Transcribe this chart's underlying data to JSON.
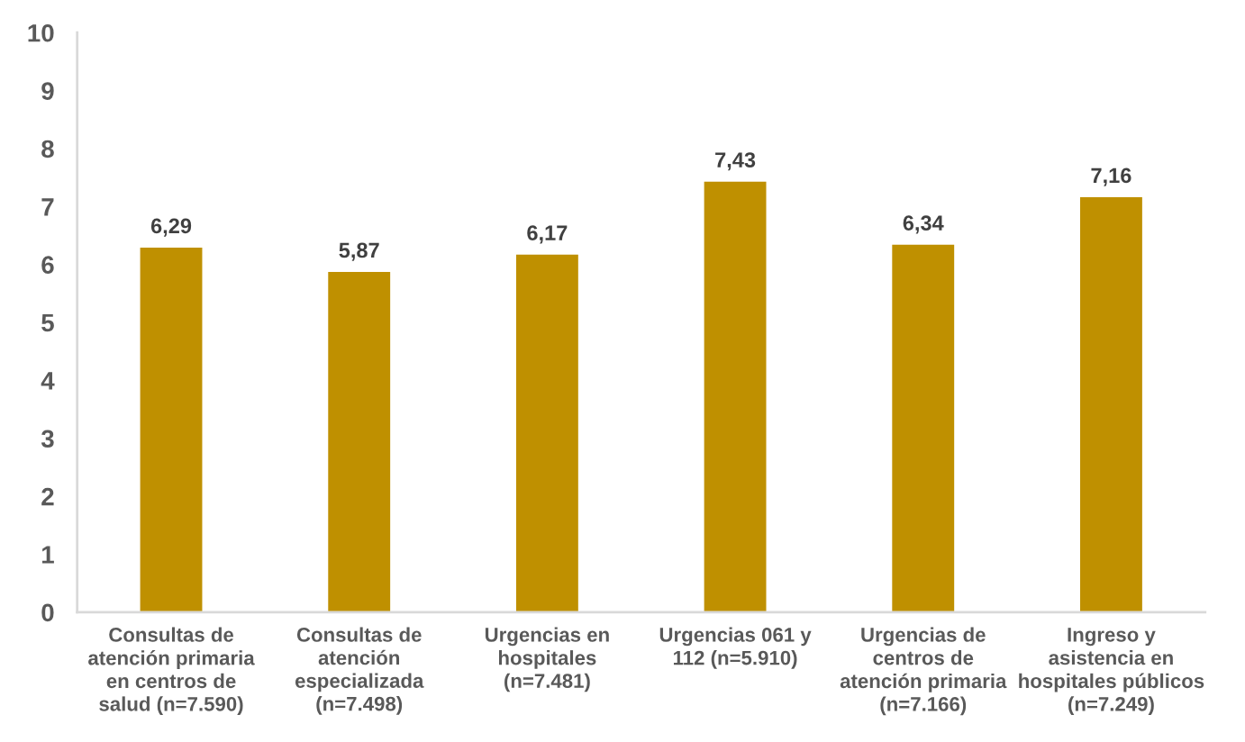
{
  "chart_data": {
    "type": "bar",
    "categories": [
      "Consultas de\natención primaria\nen centros de\nsalud (n=7.590)",
      "Consultas de\natención\nespecializada\n(n=7.498)",
      "Urgencias en\nhospitales\n(n=7.481)",
      "Urgencias 061 y\n112 (n=5.910)",
      "Urgencias de\ncentros de\natención primaria\n(n=7.166)",
      "Ingreso y\nasistencia en\nhospitales públicos\n(n=7.249)"
    ],
    "values": [
      6.29,
      5.87,
      6.17,
      7.43,
      6.34,
      7.16
    ],
    "value_labels": [
      "6,29",
      "5,87",
      "6,17",
      "7,43",
      "6,34",
      "7,16"
    ],
    "color": "#bf9000",
    "ylim": [
      0,
      10
    ],
    "yticks": [
      0,
      1,
      2,
      3,
      4,
      5,
      6,
      7,
      8,
      9,
      10
    ]
  }
}
